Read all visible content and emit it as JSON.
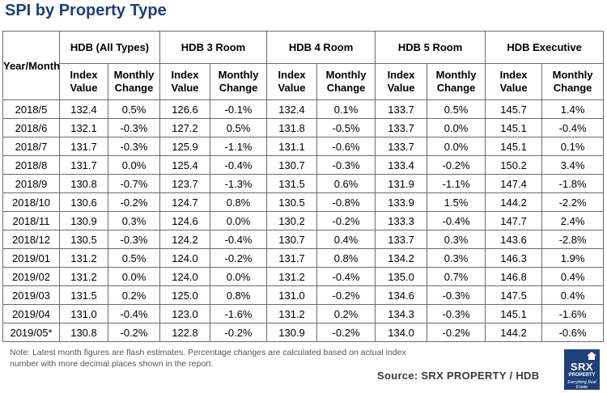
{
  "title": "SPI by Property Type",
  "table": {
    "row_header": "Year/Month",
    "groups": [
      "HDB (All Types)",
      "HDB 3 Room",
      "HDB 4 Room",
      "HDB 5 Room",
      "HDB Executive"
    ],
    "sub_headers": {
      "index": [
        "Index",
        "Value"
      ],
      "change": [
        "Monthly",
        "Change"
      ]
    },
    "rows": [
      {
        "period": "2018/5",
        "cells": [
          "132.4",
          "0.5%",
          "126.6",
          "-0.1%",
          "132.4",
          "0.1%",
          "133.7",
          "0.5%",
          "145.7",
          "1.4%"
        ]
      },
      {
        "period": "2018/6",
        "cells": [
          "132.1",
          "-0.3%",
          "127.2",
          "0.5%",
          "131.8",
          "-0.5%",
          "133.7",
          "0.0%",
          "145.1",
          "-0.4%"
        ]
      },
      {
        "period": "2018/7",
        "cells": [
          "131.7",
          "-0.3%",
          "125.9",
          "-1.1%",
          "131.1",
          "-0.6%",
          "133.7",
          "0.0%",
          "145.1",
          "0.1%"
        ]
      },
      {
        "period": "2018/8",
        "cells": [
          "131.7",
          "0.0%",
          "125.4",
          "-0.4%",
          "130.7",
          "-0.3%",
          "133.4",
          "-0.2%",
          "150.2",
          "3.4%"
        ]
      },
      {
        "period": "2018/9",
        "cells": [
          "130.8",
          "-0.7%",
          "123.7",
          "-1.3%",
          "131.5",
          "0.6%",
          "131.9",
          "-1.1%",
          "147.4",
          "-1.8%"
        ]
      },
      {
        "period": "2018/10",
        "cells": [
          "130.6",
          "-0.2%",
          "124.7",
          "0.8%",
          "130.5",
          "-0.8%",
          "133.9",
          "1.5%",
          "144.2",
          "-2.2%"
        ]
      },
      {
        "period": "2018/11",
        "cells": [
          "130.9",
          "0.3%",
          "124.6",
          "0.0%",
          "130.2",
          "-0.2%",
          "133.3",
          "-0.4%",
          "147.7",
          "2.4%"
        ]
      },
      {
        "period": "2018/12",
        "cells": [
          "130.5",
          "-0.3%",
          "124.2",
          "-0.4%",
          "130.7",
          "0.4%",
          "133.7",
          "0.3%",
          "143.6",
          "-2.8%"
        ]
      },
      {
        "period": "2019/01",
        "cells": [
          "131.2",
          "0.5%",
          "124.0",
          "-0.2%",
          "131.7",
          "0.8%",
          "134.2",
          "0.3%",
          "146.3",
          "1.9%"
        ]
      },
      {
        "period": "2019/02",
        "cells": [
          "131.2",
          "0.0%",
          "124.0",
          "0.0%",
          "131.2",
          "-0.4%",
          "135.0",
          "0.7%",
          "146.8",
          "0.4%"
        ]
      },
      {
        "period": "2019/03",
        "cells": [
          "131.5",
          "0.2%",
          "125.0",
          "0.8%",
          "131.0",
          "-0.2%",
          "134.6",
          "-0.3%",
          "147.5",
          "0.4%"
        ]
      },
      {
        "period": "2019/04",
        "cells": [
          "131.0",
          "-0.4%",
          "123.0",
          "-1.6%",
          "131.2",
          "0.2%",
          "134.3",
          "-0.3%",
          "145.1",
          "-1.6%"
        ]
      },
      {
        "period": "2019/05*",
        "cells": [
          "130.8",
          "-0.2%",
          "122.8",
          "-0.2%",
          "130.9",
          "-0.2%",
          "134.0",
          "-0.2%",
          "144.2",
          "-0.6%"
        ]
      }
    ]
  },
  "note": "Note: Latest month figures are flash estimates. Percentage changes are calculated based on actual index number with more decimal places shown in the report.",
  "source": "Source:  SRX PROPERTY / HDB",
  "logo": {
    "brand": "SRX",
    "sub": "PROPERTY",
    "tagline": "Everything Real Estate"
  },
  "colors": {
    "title": "#1f3f7a",
    "logo_bg": "#1f3f7a",
    "border": "#6b6b6b",
    "note": "#555555"
  }
}
